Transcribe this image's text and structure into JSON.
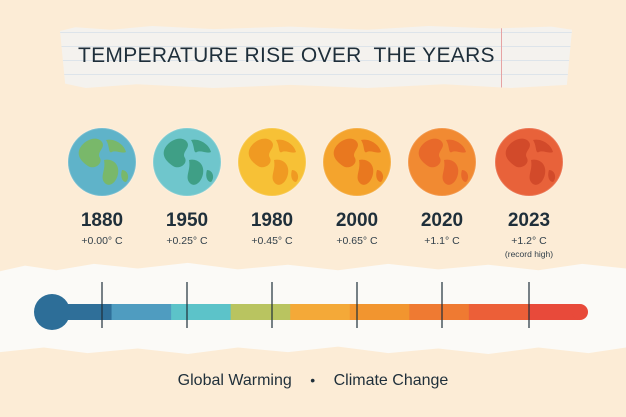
{
  "title": "TEMPERATURE RISE OVER  THE YEARS",
  "milestones": [
    {
      "year": "1880",
      "delta": "+0.00° C",
      "note": "",
      "ocean": "#5fb3c9",
      "land": "#79b86a"
    },
    {
      "year": "1950",
      "delta": "+0.25° C",
      "note": "",
      "ocean": "#6fc6cc",
      "land": "#3f9f86"
    },
    {
      "year": "1980",
      "delta": "+0.45° C",
      "note": "",
      "ocean": "#f7c136",
      "land": "#f09a22"
    },
    {
      "year": "2000",
      "delta": "+0.65° C",
      "note": "",
      "ocean": "#f4a42d",
      "land": "#e9781f"
    },
    {
      "year": "2020",
      "delta": "+1.1° C",
      "note": "",
      "ocean": "#f18a32",
      "land": "#e8692a"
    },
    {
      "year": "2023",
      "delta": "+1.2° C",
      "note": "(record high)",
      "ocean": "#e8623a",
      "land": "#d24a2a"
    }
  ],
  "scale_colors": [
    "#2f6f99",
    "#4f9cc0",
    "#5cc3c9",
    "#b9c460",
    "#f4a938",
    "#f2952f",
    "#ef7a32",
    "#ec5f38",
    "#e84a3a"
  ],
  "bulb_color": "#2d6e98",
  "footer": {
    "left": "Global Warming",
    "separator": "•",
    "right": "Climate Change"
  }
}
